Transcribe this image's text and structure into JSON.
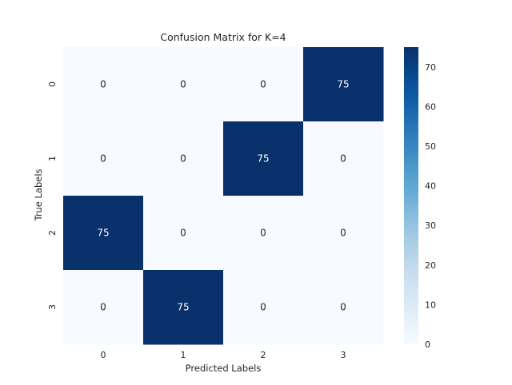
{
  "chart_data": {
    "type": "heatmap",
    "title": "Confusion Matrix for K=4",
    "xlabel": "Predicted Labels",
    "ylabel": "True Labels",
    "x_categories": [
      "0",
      "1",
      "2",
      "3"
    ],
    "y_categories": [
      "0",
      "1",
      "2",
      "3"
    ],
    "values": [
      [
        0,
        0,
        0,
        75
      ],
      [
        0,
        0,
        75,
        0
      ],
      [
        75,
        0,
        0,
        0
      ],
      [
        0,
        75,
        0,
        0
      ]
    ],
    "colormap": "Blues",
    "colorbar": {
      "range": [
        0,
        75
      ],
      "ticks": [
        "0",
        "10",
        "20",
        "30",
        "40",
        "50",
        "60",
        "70"
      ]
    },
    "colors": {
      "low": "#f7fbff",
      "high": "#08306b",
      "text_on_low": "#262626",
      "text_on_high": "#ffffff"
    }
  }
}
